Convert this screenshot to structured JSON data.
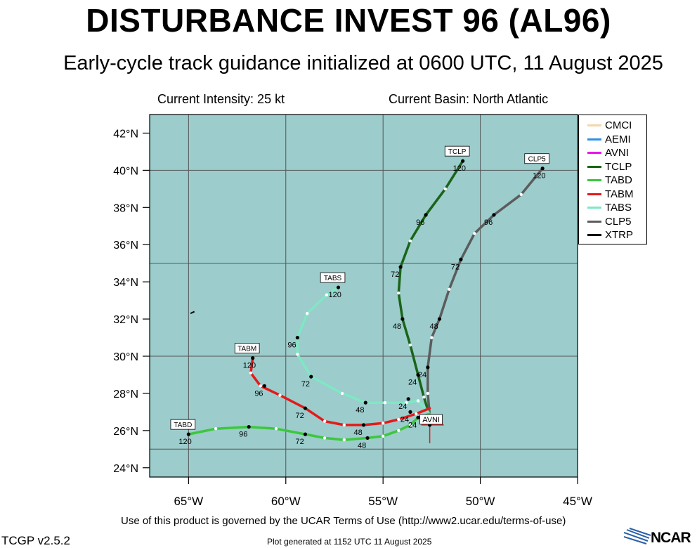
{
  "title": "DISTURBANCE INVEST 96 (AL96)",
  "subtitle": "Early-cycle track guidance initialized at 0600 UTC, 11 August 2025",
  "info": {
    "intensity": "Current Intensity: 25 kt",
    "basin": "Current Basin: North Atlantic"
  },
  "footer": {
    "terms": "Use of this product is governed by the UCAR Terms of Use (http://www2.ucar.edu/terms-of-use)",
    "version": "TCGP v2.5.2",
    "generated": "Plot generated at 1152 UTC   11 August 2025",
    "logo": "NCAR"
  },
  "chart_data": {
    "type": "line",
    "map": true,
    "background": "#9ccccc",
    "xlim": [
      -67,
      -45
    ],
    "ylim": [
      23.5,
      43
    ],
    "xticks": [
      -65,
      -60,
      -55,
      -50,
      -45
    ],
    "xtick_labels": [
      "65°W",
      "60°W",
      "55°W",
      "50°W",
      "45°W"
    ],
    "yticks": [
      24,
      26,
      28,
      30,
      32,
      34,
      36,
      38,
      40,
      42
    ],
    "ytick_labels": [
      "24°N",
      "26°N",
      "28°N",
      "30°N",
      "32°N",
      "34°N",
      "36°N",
      "38°N",
      "40°N",
      "42°N"
    ],
    "grid_lons": [
      -65,
      -60,
      -55,
      -50,
      -45
    ],
    "grid_lats": [
      25,
      30,
      35,
      40
    ],
    "initial_position": {
      "lon": -52.6,
      "lat": 26.3
    },
    "initial_label": "AVNI",
    "legend_position": "top-right",
    "legend": [
      {
        "name": "CMCI",
        "color": "#f5d7a8"
      },
      {
        "name": "AEMI",
        "color": "#2e8fe6"
      },
      {
        "name": "AVNI",
        "color": "#e817e8"
      },
      {
        "name": "TCLP",
        "color": "#1a6418"
      },
      {
        "name": "TABD",
        "color": "#3cc73c"
      },
      {
        "name": "TABM",
        "color": "#e41a1a"
      },
      {
        "name": "TABS",
        "color": "#7ee8c4"
      },
      {
        "name": "CLP5",
        "color": "#5c5c5c"
      },
      {
        "name": "XTRP",
        "color": "#000000"
      }
    ],
    "series": [
      {
        "name": "TCLP",
        "color": "#1a6418",
        "label": "TCLP",
        "points": [
          [
            -52.6,
            26.8
          ],
          [
            -52.9,
            27.8
          ],
          [
            -53.2,
            29.0
          ],
          [
            -53.6,
            30.6
          ],
          [
            -54.0,
            32.0
          ],
          [
            -54.2,
            33.4
          ],
          [
            -54.1,
            34.8
          ],
          [
            -53.6,
            36.2
          ],
          [
            -52.8,
            37.6
          ],
          [
            -51.8,
            39.0
          ],
          [
            -50.9,
            40.5
          ]
        ],
        "ticks": [
          [
            -53.2,
            29.0,
            "24"
          ],
          [
            -54.0,
            32.0,
            "48"
          ],
          [
            -54.1,
            34.8,
            "72"
          ],
          [
            -52.8,
            37.6,
            "96"
          ],
          [
            -50.9,
            40.5,
            "120"
          ]
        ]
      },
      {
        "name": "CLP5",
        "color": "#5c5c5c",
        "label": "CLP5",
        "points": [
          [
            -52.6,
            26.8
          ],
          [
            -52.7,
            28.0
          ],
          [
            -52.7,
            29.4
          ],
          [
            -52.5,
            31.0
          ],
          [
            -52.1,
            32.0
          ],
          [
            -51.6,
            33.6
          ],
          [
            -51.0,
            35.2
          ],
          [
            -50.3,
            36.6
          ],
          [
            -49.3,
            37.6
          ],
          [
            -47.9,
            38.7
          ],
          [
            -46.8,
            40.1
          ]
        ],
        "ticks": [
          [
            -52.7,
            29.4,
            "24"
          ],
          [
            -52.1,
            32.0,
            "48"
          ],
          [
            -51.0,
            35.2,
            "72"
          ],
          [
            -49.3,
            37.6,
            "96"
          ],
          [
            -46.8,
            40.1,
            "120"
          ]
        ]
      },
      {
        "name": "TABS",
        "color": "#7ee8c4",
        "label": "TABS",
        "points": [
          [
            -52.6,
            26.9
          ],
          [
            -53.2,
            27.6
          ],
          [
            -53.8,
            27.5
          ],
          [
            -54.9,
            27.5
          ],
          [
            -55.9,
            27.5
          ],
          [
            -57.1,
            28.0
          ],
          [
            -58.7,
            28.9
          ],
          [
            -59.4,
            30.1
          ],
          [
            -59.4,
            31.0
          ],
          [
            -58.9,
            32.3
          ],
          [
            -57.9,
            33.3
          ],
          [
            -57.3,
            33.7
          ]
        ],
        "ticks": [
          [
            -53.7,
            27.7,
            "24"
          ],
          [
            -55.9,
            27.5,
            "48"
          ],
          [
            -58.7,
            28.9,
            "72"
          ],
          [
            -59.4,
            31.0,
            "96"
          ],
          [
            -57.3,
            33.7,
            "120"
          ]
        ]
      },
      {
        "name": "TABM",
        "color": "#e41a1a",
        "label": "TABM",
        "points": [
          [
            -52.6,
            27.2
          ],
          [
            -53.3,
            26.9
          ],
          [
            -54.2,
            26.6
          ],
          [
            -55.0,
            26.4
          ],
          [
            -56.0,
            26.3
          ],
          [
            -57.0,
            26.3
          ],
          [
            -58.0,
            26.5
          ],
          [
            -59.0,
            27.2
          ],
          [
            -60.3,
            27.9
          ],
          [
            -61.3,
            28.4
          ],
          [
            -61.8,
            29.1
          ],
          [
            -61.7,
            29.9
          ]
        ],
        "ticks": [
          [
            -53.6,
            27.0,
            "24"
          ],
          [
            -56.0,
            26.3,
            "48"
          ],
          [
            -59.0,
            27.2,
            "72"
          ],
          [
            -61.1,
            28.4,
            "96"
          ],
          [
            -61.7,
            29.9,
            "120"
          ]
        ]
      },
      {
        "name": "TABD",
        "color": "#3cc73c",
        "label": "TABD",
        "points": [
          [
            -52.6,
            26.9
          ],
          [
            -53.2,
            26.7
          ],
          [
            -53.6,
            26.3
          ],
          [
            -54.2,
            26.0
          ],
          [
            -55.0,
            25.7
          ],
          [
            -55.8,
            25.6
          ],
          [
            -57.0,
            25.5
          ],
          [
            -58.0,
            25.6
          ],
          [
            -59.0,
            25.8
          ],
          [
            -60.5,
            26.1
          ],
          [
            -61.9,
            26.2
          ],
          [
            -63.6,
            26.1
          ],
          [
            -65.0,
            25.8
          ]
        ],
        "ticks": [
          [
            -53.2,
            26.7,
            "24"
          ],
          [
            -55.8,
            25.6,
            "48"
          ],
          [
            -59.0,
            25.8,
            "72"
          ],
          [
            -61.9,
            26.2,
            "96"
          ],
          [
            -65.0,
            25.8,
            "120"
          ]
        ]
      },
      {
        "name": "AVNI",
        "color": "#e817e8",
        "label": "",
        "points": [
          [
            -52.6,
            26.3
          ],
          [
            -52.7,
            26.4
          ]
        ],
        "ticks": []
      }
    ],
    "land": [
      {
        "name": "Bermuda",
        "points": [
          [
            -64.9,
            32.3
          ],
          [
            -64.7,
            32.4
          ]
        ]
      }
    ]
  }
}
